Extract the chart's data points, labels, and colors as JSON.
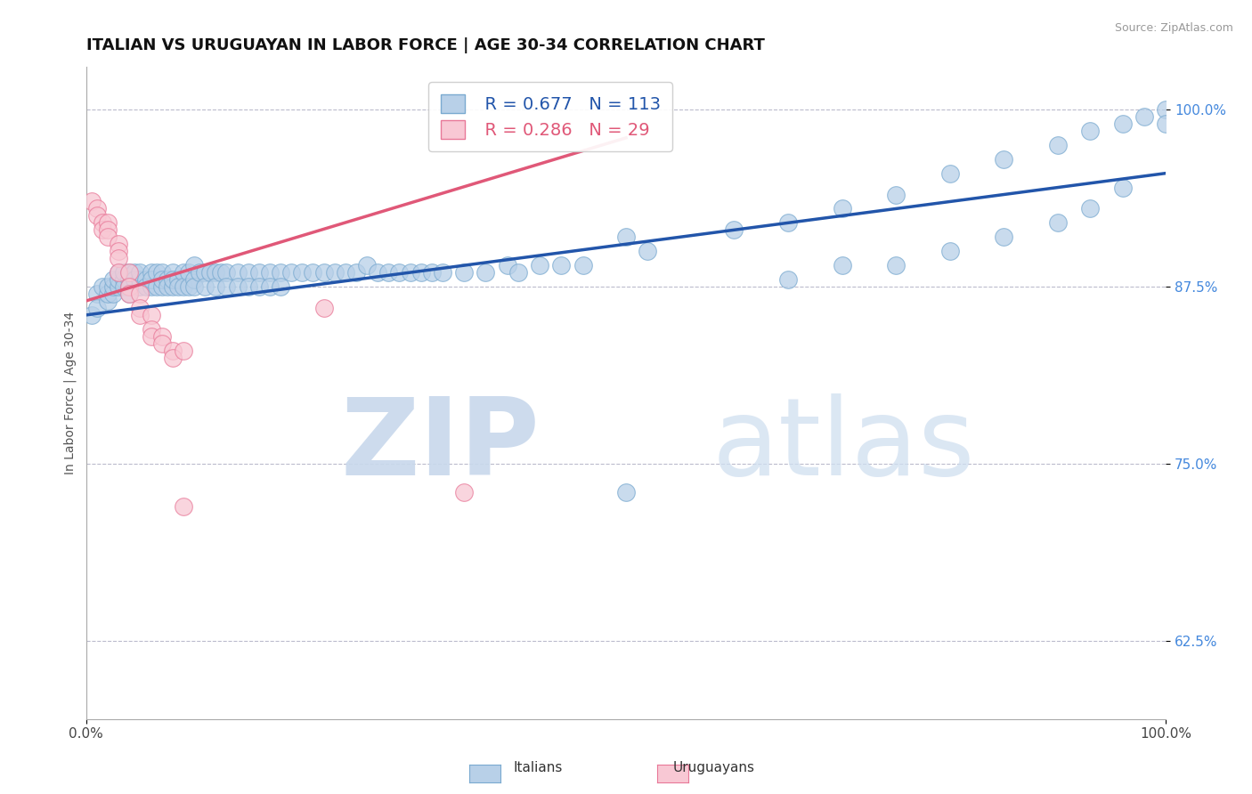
{
  "title": "ITALIAN VS URUGUAYAN IN LABOR FORCE | AGE 30-34 CORRELATION CHART",
  "source_text": "Source: ZipAtlas.com",
  "ylabel": "In Labor Force | Age 30-34",
  "xlim": [
    0.0,
    1.0
  ],
  "ylim": [
    0.57,
    1.03
  ],
  "yticks": [
    0.625,
    0.75,
    0.875,
    1.0
  ],
  "ytick_labels": [
    "62.5%",
    "75.0%",
    "87.5%",
    "100.0%"
  ],
  "xticks": [
    0.0,
    1.0
  ],
  "xtick_labels": [
    "0.0%",
    "100.0%"
  ],
  "blue_R": 0.677,
  "blue_N": 113,
  "pink_R": 0.286,
  "pink_N": 29,
  "blue_color": "#b8d0e8",
  "blue_edge_color": "#7aaad0",
  "blue_line_color": "#2255aa",
  "pink_color": "#f8c8d4",
  "pink_edge_color": "#e87898",
  "pink_line_color": "#e05878",
  "legend_blue_label": "Italians",
  "legend_pink_label": "Uruguayans",
  "watermark_zip": "ZIP",
  "watermark_atlas": "atlas",
  "title_fontsize": 13,
  "axis_label_fontsize": 10,
  "tick_fontsize": 11,
  "background_color": "#ffffff",
  "grid_color": "#bbbbcc",
  "blue_scatter_x": [
    0.005,
    0.01,
    0.01,
    0.015,
    0.02,
    0.02,
    0.02,
    0.025,
    0.025,
    0.025,
    0.03,
    0.03,
    0.03,
    0.035,
    0.035,
    0.035,
    0.04,
    0.04,
    0.04,
    0.04,
    0.045,
    0.045,
    0.05,
    0.05,
    0.05,
    0.055,
    0.055,
    0.06,
    0.06,
    0.06,
    0.065,
    0.065,
    0.07,
    0.07,
    0.07,
    0.075,
    0.075,
    0.08,
    0.08,
    0.08,
    0.085,
    0.085,
    0.09,
    0.09,
    0.095,
    0.095,
    0.1,
    0.1,
    0.1,
    0.105,
    0.11,
    0.11,
    0.115,
    0.12,
    0.12,
    0.125,
    0.13,
    0.13,
    0.14,
    0.14,
    0.15,
    0.15,
    0.16,
    0.16,
    0.17,
    0.17,
    0.18,
    0.18,
    0.19,
    0.2,
    0.21,
    0.22,
    0.23,
    0.24,
    0.25,
    0.26,
    0.27,
    0.28,
    0.29,
    0.3,
    0.31,
    0.32,
    0.33,
    0.35,
    0.37,
    0.39,
    0.4,
    0.42,
    0.44,
    0.46,
    0.5,
    0.52,
    0.6,
    0.65,
    0.7,
    0.75,
    0.8,
    0.85,
    0.9,
    0.93,
    0.96,
    0.98,
    1.0,
    0.5,
    0.65,
    0.7,
    0.75,
    0.8,
    0.85,
    0.9,
    0.93,
    0.96,
    1.0
  ],
  "blue_scatter_y": [
    0.855,
    0.87,
    0.86,
    0.875,
    0.865,
    0.87,
    0.875,
    0.87,
    0.875,
    0.88,
    0.875,
    0.88,
    0.885,
    0.88,
    0.885,
    0.875,
    0.88,
    0.885,
    0.875,
    0.87,
    0.885,
    0.88,
    0.875,
    0.88,
    0.885,
    0.88,
    0.875,
    0.885,
    0.875,
    0.88,
    0.885,
    0.875,
    0.885,
    0.875,
    0.88,
    0.88,
    0.875,
    0.885,
    0.875,
    0.88,
    0.88,
    0.875,
    0.885,
    0.875,
    0.885,
    0.875,
    0.89,
    0.88,
    0.875,
    0.885,
    0.885,
    0.875,
    0.885,
    0.885,
    0.875,
    0.885,
    0.885,
    0.875,
    0.885,
    0.875,
    0.885,
    0.875,
    0.885,
    0.875,
    0.885,
    0.875,
    0.885,
    0.875,
    0.885,
    0.885,
    0.885,
    0.885,
    0.885,
    0.885,
    0.885,
    0.89,
    0.885,
    0.885,
    0.885,
    0.885,
    0.885,
    0.885,
    0.885,
    0.885,
    0.885,
    0.89,
    0.885,
    0.89,
    0.89,
    0.89,
    0.91,
    0.9,
    0.915,
    0.92,
    0.93,
    0.94,
    0.955,
    0.965,
    0.975,
    0.985,
    0.99,
    0.995,
    1.0,
    0.73,
    0.88,
    0.89,
    0.89,
    0.9,
    0.91,
    0.92,
    0.93,
    0.945,
    0.99
  ],
  "pink_scatter_x": [
    0.005,
    0.01,
    0.01,
    0.015,
    0.015,
    0.02,
    0.02,
    0.02,
    0.03,
    0.03,
    0.03,
    0.03,
    0.04,
    0.04,
    0.04,
    0.05,
    0.05,
    0.05,
    0.06,
    0.06,
    0.06,
    0.07,
    0.07,
    0.08,
    0.08,
    0.09,
    0.09,
    0.22,
    0.35
  ],
  "pink_scatter_y": [
    0.935,
    0.93,
    0.925,
    0.92,
    0.915,
    0.92,
    0.915,
    0.91,
    0.905,
    0.9,
    0.895,
    0.885,
    0.885,
    0.875,
    0.87,
    0.87,
    0.86,
    0.855,
    0.855,
    0.845,
    0.84,
    0.84,
    0.835,
    0.83,
    0.825,
    0.83,
    0.72,
    0.86,
    0.73
  ],
  "blue_line_x": [
    0.0,
    1.0
  ],
  "blue_line_y": [
    0.855,
    0.955
  ],
  "pink_line_x": [
    0.0,
    0.5
  ],
  "pink_line_y": [
    0.865,
    0.98
  ]
}
